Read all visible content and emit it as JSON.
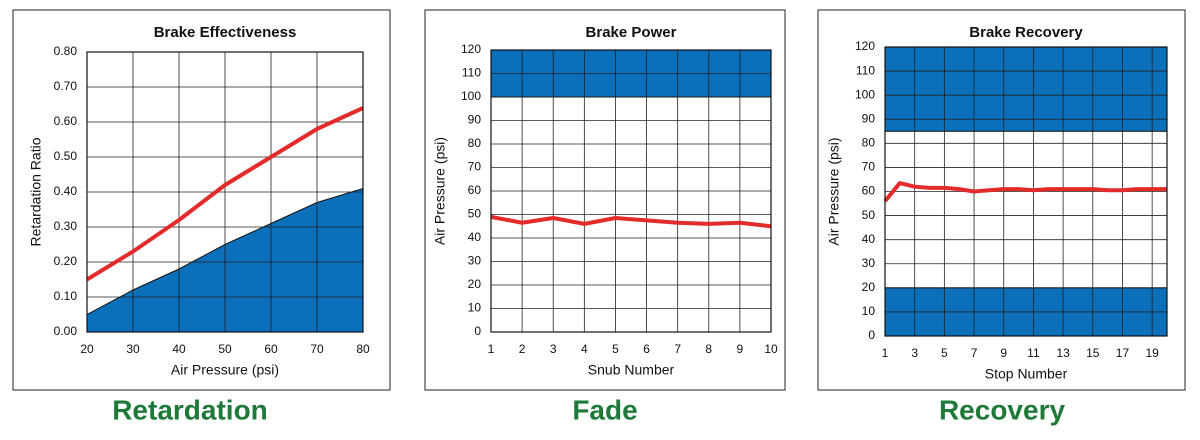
{
  "chart_data": [
    {
      "type": "line",
      "title": "Brake Effectiveness",
      "caption": "Retardation",
      "x_label": "Air Pressure (psi)",
      "y_label": "Retardation Ratio",
      "x": [
        20,
        30,
        40,
        50,
        60,
        70,
        80
      ],
      "series": [
        {
          "kind": "area",
          "color": "#0b6fba",
          "values": [
            0.05,
            0.12,
            0.18,
            0.25,
            0.31,
            0.37,
            0.41
          ]
        },
        {
          "kind": "line",
          "color": "#e32b2b",
          "values": [
            0.15,
            0.23,
            0.32,
            0.42,
            0.5,
            0.58,
            0.64
          ]
        }
      ],
      "xlim": [
        20,
        80
      ],
      "xticks": [
        20,
        30,
        40,
        50,
        60,
        70,
        80
      ],
      "ylim": [
        0,
        0.8
      ],
      "yticks": [
        {
          "value": 0,
          "label": "0.00"
        },
        {
          "value": 0.1,
          "label": "0.10"
        },
        {
          "value": 0.2,
          "label": "0.20"
        },
        {
          "value": 0.3,
          "label": "0.30"
        },
        {
          "value": 0.4,
          "label": "0.40"
        },
        {
          "value": 0.5,
          "label": "0.50"
        },
        {
          "value": 0.6,
          "label": "0.60"
        },
        {
          "value": 0.7,
          "label": "0.70"
        },
        {
          "value": 0.8,
          "label": "0.80"
        }
      ],
      "grid": true
    },
    {
      "type": "line",
      "title": "Brake Power",
      "caption": "Fade",
      "x_label": "Snub Number",
      "y_label": "Air Pressure (psi)",
      "x": [
        1,
        2,
        3,
        4,
        5,
        6,
        7,
        8,
        9,
        10
      ],
      "bands": [
        {
          "from": 100,
          "to": 120,
          "color": "#0b6fba"
        }
      ],
      "series": [
        {
          "kind": "line",
          "color": "#e32b2b",
          "values": [
            49,
            46.5,
            48.5,
            46,
            48.5,
            47.5,
            46.5,
            46,
            46.5,
            45
          ]
        }
      ],
      "xlim": [
        1,
        10
      ],
      "xticks": [
        1,
        2,
        3,
        4,
        5,
        6,
        7,
        8,
        9,
        10
      ],
      "ylim": [
        0,
        120
      ],
      "yticks": [
        0,
        10,
        20,
        30,
        40,
        50,
        60,
        70,
        80,
        90,
        100,
        110,
        120
      ],
      "grid": true
    },
    {
      "type": "line",
      "title": "Brake Recovery",
      "caption": "Recovery",
      "x_label": "Stop Number",
      "y_label": "Air Pressure (psi)",
      "x": [
        1,
        2,
        3,
        4,
        5,
        6,
        7,
        8,
        9,
        10,
        11,
        12,
        13,
        14,
        15,
        16,
        17,
        18,
        19,
        20
      ],
      "bands": [
        {
          "from": 85,
          "to": 120,
          "color": "#0b6fba"
        },
        {
          "from": 0,
          "to": 20,
          "color": "#0b6fba"
        }
      ],
      "series": [
        {
          "kind": "line",
          "color": "#e32b2b",
          "values": [
            56,
            63.5,
            62,
            61.5,
            61.5,
            61,
            60,
            60.5,
            61,
            61,
            60.5,
            61,
            61,
            61,
            61,
            60.5,
            60.5,
            61,
            61,
            61
          ]
        }
      ],
      "xlim": [
        1,
        20
      ],
      "xticks": [
        1,
        3,
        5,
        7,
        9,
        11,
        13,
        15,
        17,
        19
      ],
      "ylim": [
        0,
        120
      ],
      "yticks": [
        0,
        10,
        20,
        30,
        40,
        50,
        60,
        70,
        80,
        90,
        100,
        110,
        120
      ],
      "grid": true
    }
  ]
}
